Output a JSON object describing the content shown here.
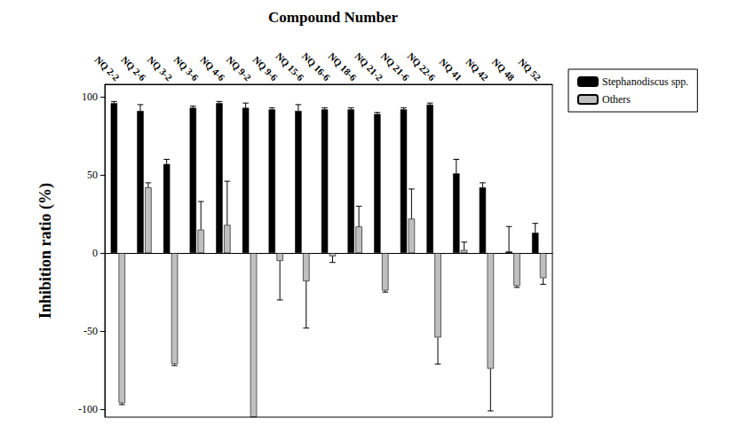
{
  "chart_data": {
    "type": "bar",
    "title": "Compound Number",
    "y_label": "Inhibition ratio (%)",
    "categories": [
      "NQ 2-2",
      "NQ 2-6",
      "NQ 3-2",
      "NQ 3-6",
      "NQ 4-6",
      "NQ 9-2",
      "NQ 9-6",
      "NQ 15-6",
      "NQ 16-6",
      "NQ 18-6",
      "NQ 21-2",
      "NQ 21-6",
      "NQ 22-6",
      "NQ 41",
      "NQ 42",
      "NQ 48",
      "NQ 52"
    ],
    "series": [
      {
        "name": "Stephanodiscus spp.",
        "color": "#000000",
        "values": [
          96,
          91,
          57,
          93,
          96,
          93,
          92,
          91,
          92,
          92,
          89,
          92,
          95,
          51,
          42,
          1,
          13
        ],
        "errors": [
          1,
          4,
          3,
          1,
          1,
          3,
          1,
          4,
          1,
          1,
          1,
          1,
          1,
          9,
          3,
          16,
          6
        ]
      },
      {
        "name": "Others",
        "color": "#bfbfbf",
        "values": [
          -96,
          42,
          -71,
          15,
          18,
          -105,
          -5,
          -18,
          -2,
          17,
          -24,
          22,
          -54,
          2,
          -74,
          -21,
          -16
        ],
        "errors": [
          1,
          3,
          1,
          18,
          28,
          0,
          25,
          30,
          4,
          13,
          1,
          19,
          17,
          5,
          27,
          1,
          4
        ]
      }
    ],
    "ylim": [
      -105,
      108
    ],
    "yticks": [
      -100,
      -50,
      0,
      50,
      100
    ],
    "legend": "right",
    "grid": false
  }
}
